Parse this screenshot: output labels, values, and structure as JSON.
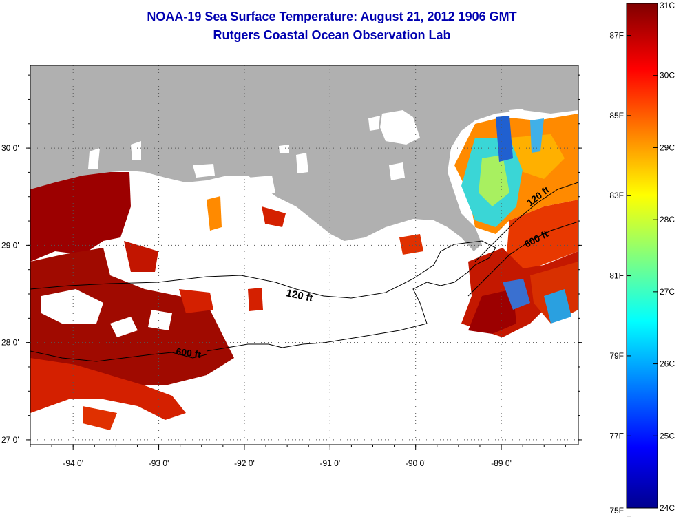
{
  "title": {
    "line1": "NOAA-19 Sea Surface Temperature:  August 21, 2012 1906 GMT",
    "line2": "Rutgers Coastal Ocean Observation Lab"
  },
  "map": {
    "lon_ticks": [
      {
        "value": -94,
        "label": "-94 0'"
      },
      {
        "value": -93,
        "label": "-93 0'"
      },
      {
        "value": -92,
        "label": "-92 0'"
      },
      {
        "value": -91,
        "label": "-91 0'"
      },
      {
        "value": -90,
        "label": "-90 0'"
      },
      {
        "value": -89,
        "label": "-89 0'"
      }
    ],
    "lat_ticks": [
      {
        "value": 30,
        "label": "30 0'"
      },
      {
        "value": 29,
        "label": "29 0'"
      },
      {
        "value": 28,
        "label": "28 0'"
      },
      {
        "value": 27,
        "label": "27 0'"
      }
    ],
    "lon_range": [
      -94.5,
      -88.1
    ],
    "lat_range": [
      26.95,
      30.85
    ],
    "contours": [
      {
        "label": "120 ft"
      },
      {
        "label": "600 ft"
      },
      {
        "label": "120 ft"
      },
      {
        "label": "600 ft"
      }
    ],
    "colors": {
      "land": "#b0b0b0",
      "cloud": "#ffffff",
      "hot": "#9c0000",
      "warm": "#d42000",
      "mid": "#ff8a00",
      "cool": "#3ad6d6"
    }
  },
  "colorbar": {
    "range_c": [
      24,
      31
    ],
    "celsius_ticks": [
      {
        "value": 31,
        "label": "31C"
      },
      {
        "value": 30,
        "label": "30C"
      },
      {
        "value": 29,
        "label": "29C"
      },
      {
        "value": 28,
        "label": "28C"
      },
      {
        "value": 27,
        "label": "27C"
      },
      {
        "value": 26,
        "label": "26C"
      },
      {
        "value": 25,
        "label": "25C"
      },
      {
        "value": 24,
        "label": "24C"
      }
    ],
    "fahrenheit_ticks": [
      {
        "value": 87,
        "label": "87F"
      },
      {
        "value": 85,
        "label": "85F"
      },
      {
        "value": 83,
        "label": "83F"
      },
      {
        "value": 81,
        "label": "81F"
      },
      {
        "value": 79,
        "label": "79F"
      },
      {
        "value": 77,
        "label": "77F"
      },
      {
        "value": 75,
        "label": "75F"
      }
    ]
  }
}
